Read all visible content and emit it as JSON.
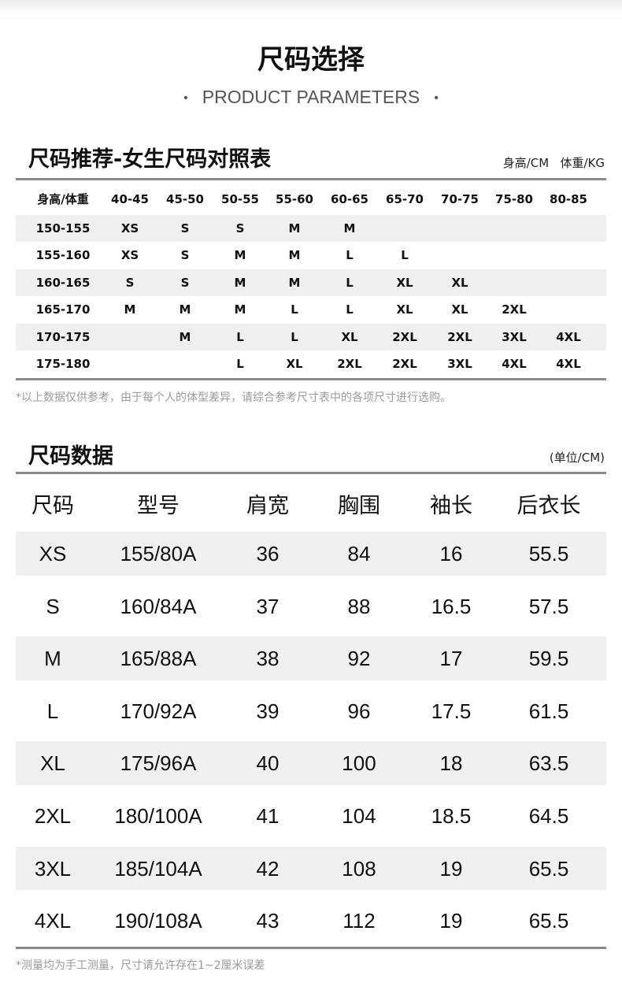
{
  "header": {
    "title": "尺码选择",
    "subtitle": "PRODUCT PARAMETERS",
    "dot": "•"
  },
  "recommend": {
    "title": "尺码推荐-女生尺码对照表",
    "units": "身高/CM   体重/KG",
    "columns": [
      "身高/体重",
      "40-45",
      "45-50",
      "50-55",
      "55-60",
      "60-65",
      "65-70",
      "70-75",
      "75-80",
      "80-85"
    ],
    "rows": [
      [
        "150-155",
        "XS",
        "S",
        "S",
        "M",
        "M",
        "",
        "",
        "",
        ""
      ],
      [
        "155-160",
        "XS",
        "S",
        "M",
        "M",
        "L",
        "L",
        "",
        "",
        ""
      ],
      [
        "160-165",
        "S",
        "S",
        "M",
        "M",
        "L",
        "XL",
        "XL",
        "",
        ""
      ],
      [
        "165-170",
        "M",
        "M",
        "M",
        "L",
        "L",
        "XL",
        "XL",
        "2XL",
        ""
      ],
      [
        "170-175",
        "",
        "M",
        "L",
        "L",
        "XL",
        "2XL",
        "2XL",
        "3XL",
        "4XL"
      ],
      [
        "175-180",
        "",
        "",
        "L",
        "XL",
        "2XL",
        "2XL",
        "3XL",
        "4XL",
        "4XL"
      ]
    ],
    "note": "*以上数据仅供参考，由于每个人的体型差异，请综合参考尺寸表中的各项尺寸进行选购。"
  },
  "sizes": {
    "title": "尺码数据",
    "unit": "(单位/CM)",
    "columns": [
      "尺码",
      "型号",
      "肩宽",
      "胸围",
      "袖长",
      "后衣长"
    ],
    "rows": [
      [
        "XS",
        "155/80A",
        "36",
        "84",
        "16",
        "55.5"
      ],
      [
        "S",
        "160/84A",
        "37",
        "88",
        "16.5",
        "57.5"
      ],
      [
        "M",
        "165/88A",
        "38",
        "92",
        "17",
        "59.5"
      ],
      [
        "L",
        "170/92A",
        "39",
        "96",
        "17.5",
        "61.5"
      ],
      [
        "XL",
        "175/96A",
        "40",
        "100",
        "18",
        "63.5"
      ],
      [
        "2XL",
        "180/100A",
        "41",
        "104",
        "18.5",
        "64.5"
      ],
      [
        "3XL",
        "185/104A",
        "42",
        "108",
        "19",
        "65.5"
      ],
      [
        "4XL",
        "190/108A",
        "43",
        "112",
        "19",
        "65.5"
      ]
    ],
    "note": "*测量均为手工测量，尺寸请允许存在1~2厘米误差"
  }
}
